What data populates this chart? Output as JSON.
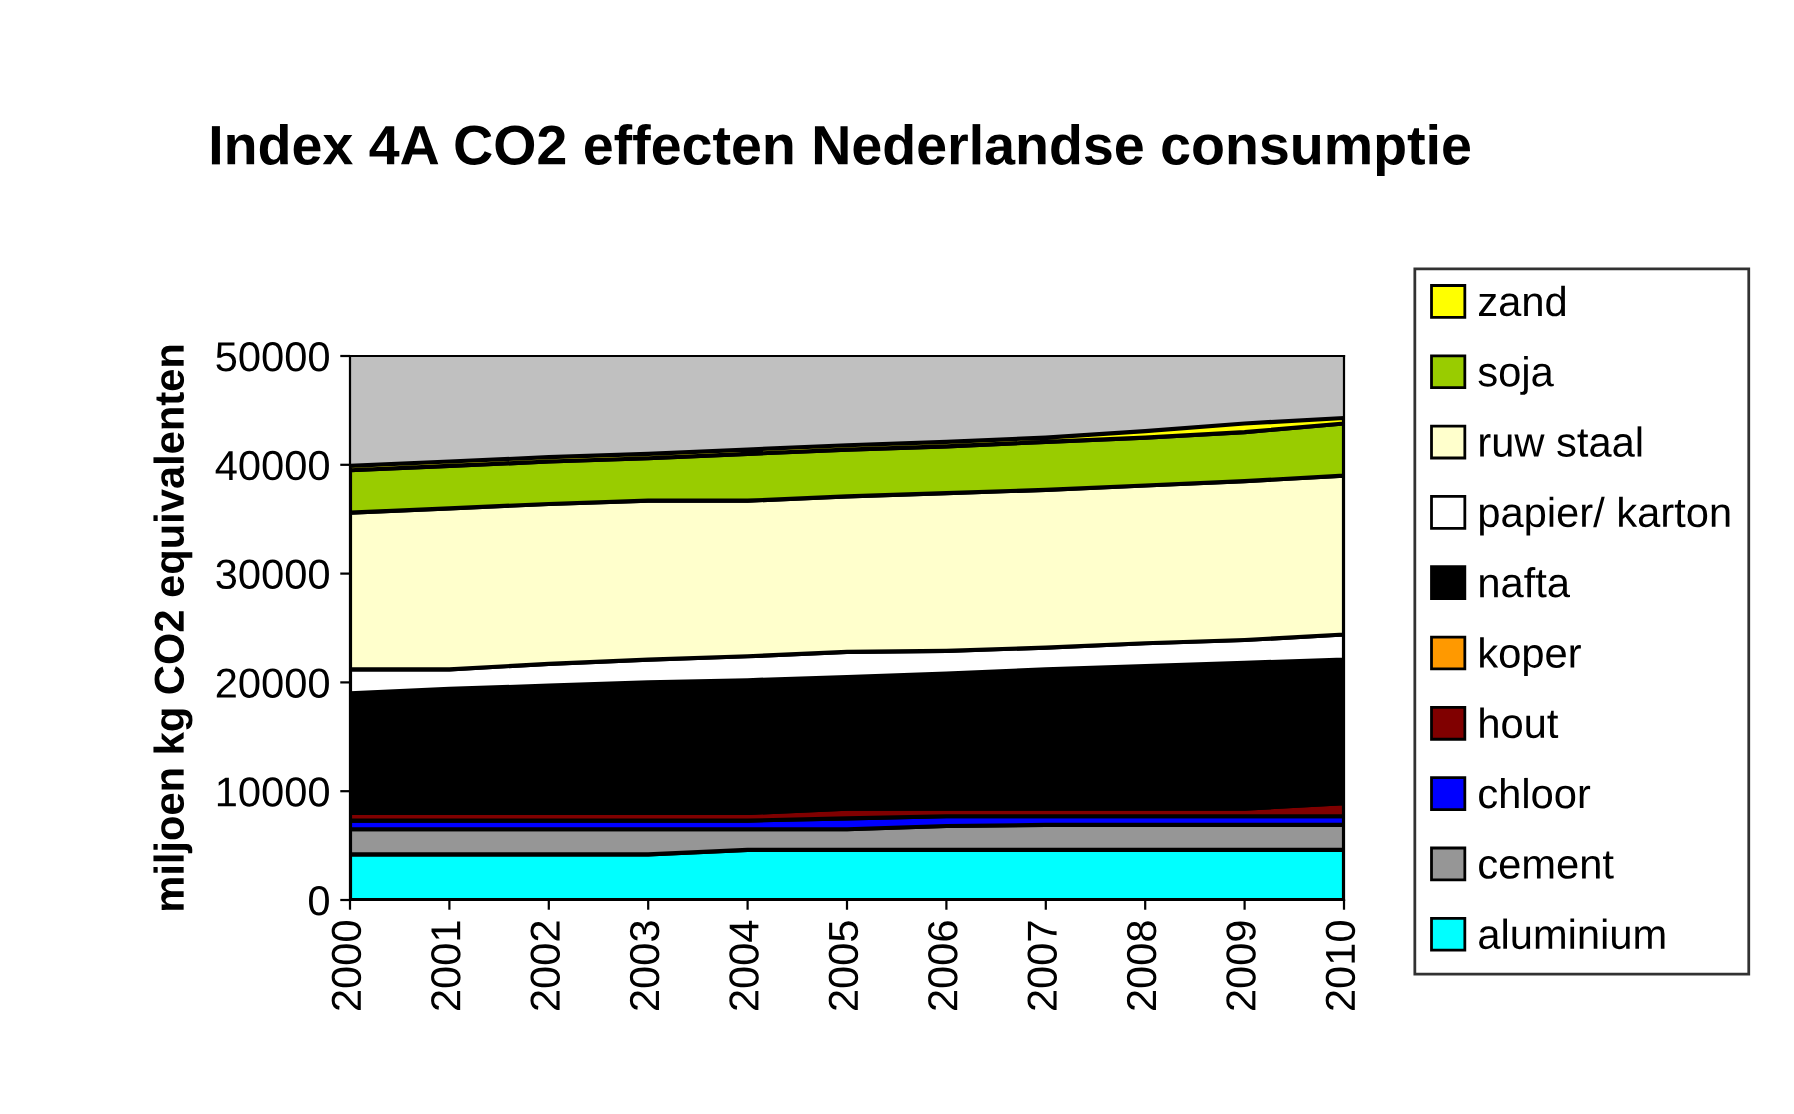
{
  "chart_data": {
    "type": "area",
    "stacked": true,
    "title": "Index 4A CO2 effecten Nederlandse consumptie",
    "ylabel": "miljoen kg CO2 equivalenten",
    "categories": [
      "2000",
      "2001",
      "2002",
      "2003",
      "2004",
      "2005",
      "2006",
      "2007",
      "2008",
      "2009",
      "2010"
    ],
    "series": [
      {
        "name": "aluminium",
        "color": "#00ffff",
        "values": [
          4200,
          4200,
          4200,
          4200,
          4600,
          4600,
          4600,
          4600,
          4600,
          4600,
          4600
        ]
      },
      {
        "name": "cement",
        "color": "#969696",
        "values": [
          2300,
          2300,
          2300,
          2300,
          1900,
          1900,
          2200,
          2300,
          2300,
          2300,
          2300
        ]
      },
      {
        "name": "chloor",
        "color": "#0000ff",
        "values": [
          800,
          800,
          800,
          800,
          800,
          1000,
          900,
          800,
          800,
          800,
          800
        ]
      },
      {
        "name": "hout",
        "color": "#800000",
        "values": [
          700,
          700,
          700,
          700,
          700,
          900,
          700,
          700,
          700,
          700,
          1200
        ]
      },
      {
        "name": "koper",
        "color": "#ff9900",
        "values": [
          null,
          null,
          null,
          null,
          null,
          null,
          null,
          null,
          null,
          null,
          null
        ]
      },
      {
        "name": "nafta",
        "color": "#000000",
        "values": [
          11000,
          11400,
          11700,
          12000,
          12200,
          12100,
          12400,
          12800,
          13100,
          13400,
          13200
        ]
      },
      {
        "name": "papier/ karton",
        "color": "#ffffff",
        "values": [
          2200,
          1800,
          2000,
          2100,
          2200,
          2300,
          2100,
          2000,
          2100,
          2100,
          2300
        ]
      },
      {
        "name": "ruw staal",
        "color": "#ffffcc",
        "values": [
          14400,
          14800,
          14700,
          14600,
          14300,
          14300,
          14500,
          14500,
          14500,
          14600,
          14600
        ]
      },
      {
        "name": "soja",
        "color": "#99cc00",
        "values": [
          3900,
          3900,
          3900,
          3900,
          4300,
          4300,
          4300,
          4400,
          4400,
          4500,
          4800
        ]
      },
      {
        "name": "zand",
        "color": "#ffff00",
        "values": [
          400,
          400,
          400,
          400,
          400,
          400,
          400,
          400,
          600,
          800,
          500
        ]
      }
    ],
    "ylim": [
      0,
      50000
    ],
    "yticks": [
      0,
      10000,
      20000,
      30000,
      40000,
      50000
    ],
    "grid": false,
    "legend": "right"
  }
}
